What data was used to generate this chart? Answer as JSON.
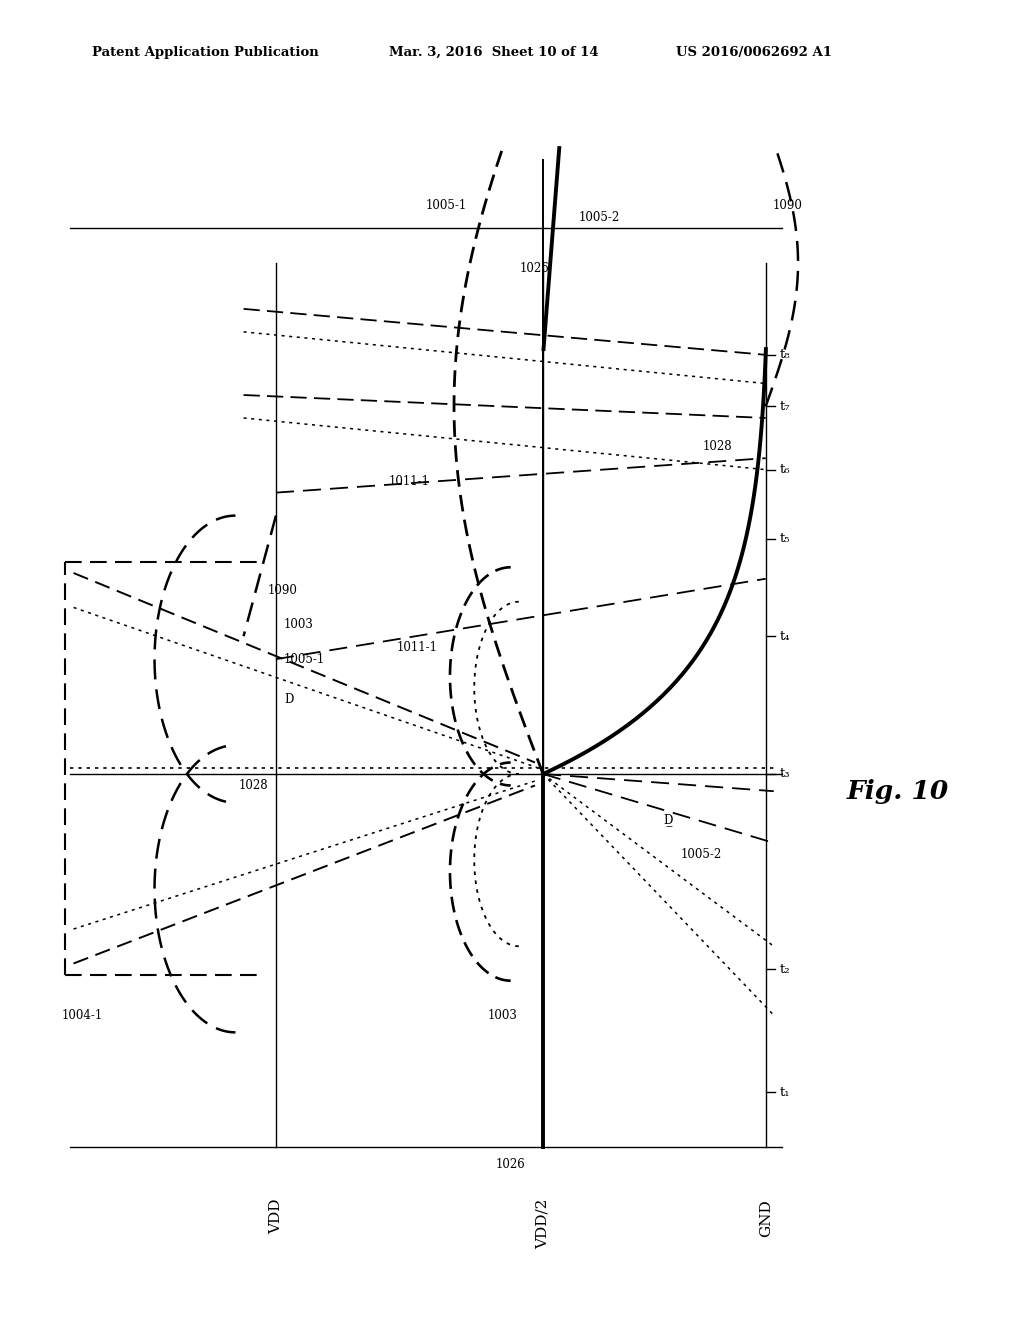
{
  "header_left": "Patent Application Publication",
  "header_mid": "Mar. 3, 2016  Sheet 10 of 14",
  "header_right": "US 2016/0062692 A1",
  "fig_label": "Fig. 10",
  "ylabel_top": "VDD",
  "ylabel_mid": "VDD/2",
  "ylabel_bot": "GND",
  "time_ticks": [
    "t₁",
    "t₂",
    "t₃",
    "t₄",
    "t₅",
    "t₆",
    "t₇",
    "t₈"
  ],
  "background": "#ffffff"
}
